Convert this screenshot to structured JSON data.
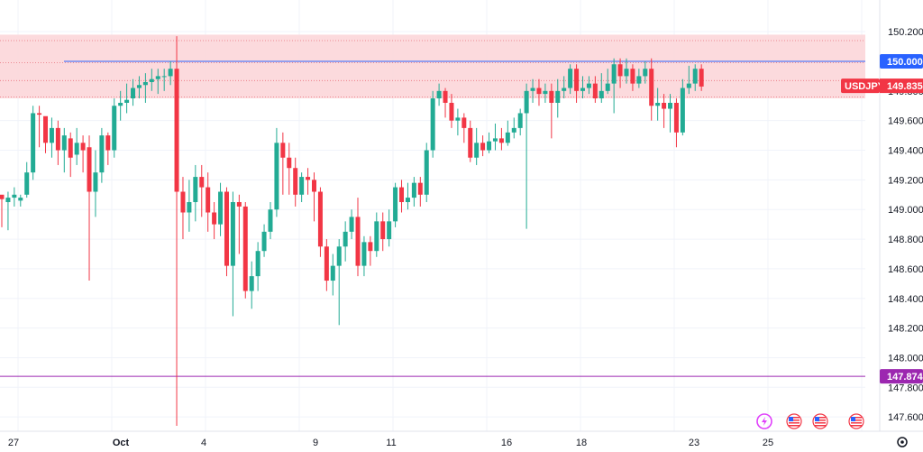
{
  "chart_data": {
    "type": "candlestick",
    "symbol": "USDJPY",
    "last_price_label": "149.835",
    "colors": {
      "up": "#22ab94",
      "down": "#f23645",
      "zone_fill": "#fbd4d7",
      "blue_line": "#2962ff",
      "purple_line": "#9c27b0",
      "grid": "#f0f3fa"
    },
    "ylim": [
      147.54,
      150.28
    ],
    "y_ticks": [
      "150.200",
      "149.800",
      "149.600",
      "149.400",
      "149.200",
      "149.000",
      "148.800",
      "148.600",
      "148.400",
      "148.200",
      "148.000",
      "147.800",
      "147.600"
    ],
    "x_ticks": [
      "27",
      "Oct",
      "4",
      "9",
      "11",
      "16",
      "18",
      "23",
      "25"
    ],
    "zone": {
      "from": 149.75,
      "to": 150.18
    },
    "horizontal_lines": [
      {
        "value": 150.0,
        "label": "150.000",
        "color": "#2962ff",
        "x_from": 71
      },
      {
        "value": 147.874,
        "label": "147.874",
        "color": "#9c27b0",
        "x_from": 0
      }
    ],
    "dotted_levels": [
      150.14,
      149.99,
      149.87,
      149.76
    ],
    "candles": [
      [
        149.1,
        149.07,
        149.08,
        148.88
      ],
      [
        149.05,
        149.08,
        149.12,
        148.86
      ],
      [
        149.08,
        149.1,
        149.15,
        149.02
      ],
      [
        149.06,
        149.08,
        149.1,
        149.02
      ],
      [
        149.1,
        149.25,
        149.32,
        149.08
      ],
      [
        149.25,
        149.65,
        149.7,
        149.2
      ],
      [
        149.65,
        149.64,
        149.7,
        149.42
      ],
      [
        149.63,
        149.45,
        149.6,
        149.38
      ],
      [
        149.45,
        149.55,
        149.62,
        149.35
      ],
      [
        149.55,
        149.4,
        149.6,
        149.3
      ],
      [
        149.4,
        149.5,
        149.55,
        149.25
      ],
      [
        149.48,
        149.35,
        149.52,
        149.22
      ],
      [
        149.37,
        149.45,
        149.55,
        149.3
      ],
      [
        149.45,
        149.4,
        149.5,
        149.25
      ],
      [
        149.42,
        149.12,
        149.5,
        148.52
      ],
      [
        149.12,
        149.25,
        149.4,
        148.95
      ],
      [
        149.25,
        149.5,
        149.55,
        149.18
      ],
      [
        149.5,
        149.4,
        149.52,
        149.3
      ],
      [
        149.4,
        149.7,
        149.75,
        149.35
      ],
      [
        149.7,
        149.72,
        149.8,
        149.6
      ],
      [
        149.72,
        149.74,
        149.85,
        149.65
      ],
      [
        149.75,
        149.82,
        149.88,
        149.7
      ],
      [
        149.82,
        149.84,
        149.9,
        149.75
      ],
      [
        149.84,
        149.86,
        149.92,
        149.72
      ],
      [
        149.86,
        149.88,
        149.95,
        149.8
      ],
      [
        149.88,
        149.9,
        149.95,
        149.78
      ],
      [
        149.9,
        149.9,
        149.95,
        149.8
      ],
      [
        149.9,
        149.95,
        150.0,
        149.84
      ],
      [
        149.95,
        149.12,
        150.17,
        147.54
      ],
      [
        149.12,
        148.98,
        149.22,
        148.8
      ],
      [
        148.98,
        149.05,
        149.2,
        148.85
      ],
      [
        149.05,
        149.22,
        149.3,
        148.92
      ],
      [
        149.22,
        149.15,
        149.3,
        148.95
      ],
      [
        149.15,
        148.98,
        149.25,
        148.85
      ],
      [
        148.98,
        148.9,
        149.05,
        148.8
      ],
      [
        148.9,
        149.12,
        149.18,
        148.82
      ],
      [
        149.12,
        148.62,
        149.15,
        148.55
      ],
      [
        148.62,
        149.05,
        149.12,
        148.28
      ],
      [
        149.05,
        149.02,
        149.1,
        148.7
      ],
      [
        149.02,
        148.45,
        149.05,
        148.4
      ],
      [
        148.45,
        148.55,
        148.65,
        148.33
      ],
      [
        148.55,
        148.72,
        148.78,
        148.45
      ],
      [
        148.72,
        148.85,
        148.9,
        148.68
      ],
      [
        148.85,
        149.0,
        149.05,
        148.8
      ],
      [
        149.0,
        149.45,
        149.55,
        148.95
      ],
      [
        149.45,
        149.35,
        149.52,
        149.1
      ],
      [
        149.35,
        149.28,
        149.45,
        149.1
      ],
      [
        149.28,
        149.1,
        149.35,
        149.02
      ],
      [
        149.1,
        149.22,
        149.25,
        149.05
      ],
      [
        149.22,
        149.2,
        149.28,
        149.1
      ],
      [
        149.2,
        149.12,
        149.25,
        148.92
      ],
      [
        149.12,
        148.75,
        149.15,
        148.68
      ],
      [
        148.75,
        148.52,
        148.8,
        148.45
      ],
      [
        148.52,
        148.62,
        148.7,
        148.42
      ],
      [
        148.62,
        148.75,
        148.8,
        148.22
      ],
      [
        148.75,
        148.85,
        148.92,
        148.65
      ],
      [
        148.85,
        148.95,
        149.0,
        148.8
      ],
      [
        148.95,
        148.62,
        149.08,
        148.55
      ],
      [
        148.62,
        148.78,
        148.82,
        148.55
      ],
      [
        148.78,
        148.72,
        148.82,
        148.62
      ],
      [
        148.72,
        148.92,
        148.98,
        148.68
      ],
      [
        148.92,
        148.8,
        148.98,
        148.72
      ],
      [
        148.8,
        148.92,
        149.0,
        148.75
      ],
      [
        148.92,
        149.15,
        149.18,
        148.88
      ],
      [
        149.15,
        149.05,
        149.2,
        148.98
      ],
      [
        149.05,
        149.08,
        149.18,
        149.0
      ],
      [
        149.08,
        149.18,
        149.22,
        149.02
      ],
      [
        149.18,
        149.1,
        149.22,
        149.02
      ],
      [
        149.1,
        149.4,
        149.45,
        149.05
      ],
      [
        149.4,
        149.75,
        149.8,
        149.35
      ],
      [
        149.75,
        149.8,
        149.85,
        149.7
      ],
      [
        149.8,
        149.72,
        149.82,
        149.62
      ],
      [
        149.72,
        149.6,
        149.78,
        149.55
      ],
      [
        149.6,
        149.62,
        149.68,
        149.5
      ],
      [
        149.62,
        149.55,
        149.65,
        149.45
      ],
      [
        149.55,
        149.35,
        149.6,
        149.32
      ],
      [
        149.35,
        149.45,
        149.55,
        149.3
      ],
      [
        149.45,
        149.4,
        149.5,
        149.36
      ],
      [
        149.4,
        149.46,
        149.52,
        149.38
      ],
      [
        149.46,
        149.48,
        149.58,
        149.4
      ],
      [
        149.48,
        149.45,
        149.55,
        149.4
      ],
      [
        149.45,
        149.52,
        149.6,
        149.43
      ],
      [
        149.52,
        149.55,
        149.62,
        149.48
      ],
      [
        149.55,
        149.65,
        149.68,
        149.5
      ],
      [
        149.65,
        149.8,
        149.85,
        148.87
      ],
      [
        149.8,
        149.82,
        149.88,
        149.72
      ],
      [
        149.82,
        149.78,
        149.88,
        149.7
      ],
      [
        149.78,
        149.8,
        149.85,
        149.72
      ],
      [
        149.8,
        149.72,
        149.85,
        149.48
      ],
      [
        149.72,
        149.8,
        149.88,
        149.62
      ],
      [
        149.8,
        149.82,
        149.9,
        149.75
      ],
      [
        149.82,
        149.95,
        149.98,
        149.78
      ],
      [
        149.95,
        149.8,
        149.98,
        149.72
      ],
      [
        149.8,
        149.82,
        149.9,
        149.75
      ],
      [
        149.82,
        149.85,
        149.9,
        149.78
      ],
      [
        149.85,
        149.75,
        149.9,
        149.72
      ],
      [
        149.75,
        149.8,
        149.92,
        149.72
      ],
      [
        149.8,
        149.85,
        149.95,
        149.78
      ],
      [
        149.85,
        149.98,
        150.02,
        149.65
      ],
      [
        149.98,
        149.9,
        150.02,
        149.82
      ],
      [
        149.9,
        149.95,
        150.02,
        149.85
      ],
      [
        149.95,
        149.85,
        149.98,
        149.8
      ],
      [
        149.85,
        149.9,
        149.95,
        149.82
      ],
      [
        149.9,
        149.95,
        150.0,
        149.85
      ],
      [
        149.95,
        149.7,
        150.02,
        149.6
      ],
      [
        149.7,
        149.72,
        149.82,
        149.6
      ],
      [
        149.72,
        149.68,
        149.78,
        149.55
      ],
      [
        149.68,
        149.72,
        149.78,
        149.52
      ],
      [
        149.72,
        149.52,
        149.75,
        149.42
      ],
      [
        149.52,
        149.82,
        149.88,
        149.5
      ],
      [
        149.82,
        149.85,
        149.97,
        149.78
      ],
      [
        149.85,
        149.95,
        149.98,
        149.8
      ],
      [
        149.95,
        149.83,
        149.98,
        149.8
      ]
    ]
  },
  "bottom_icons": [
    "lightning-icon",
    "us-flag-icon",
    "us-flag-icon",
    "us-flag-icon"
  ],
  "settings_icon": "gear-icon"
}
